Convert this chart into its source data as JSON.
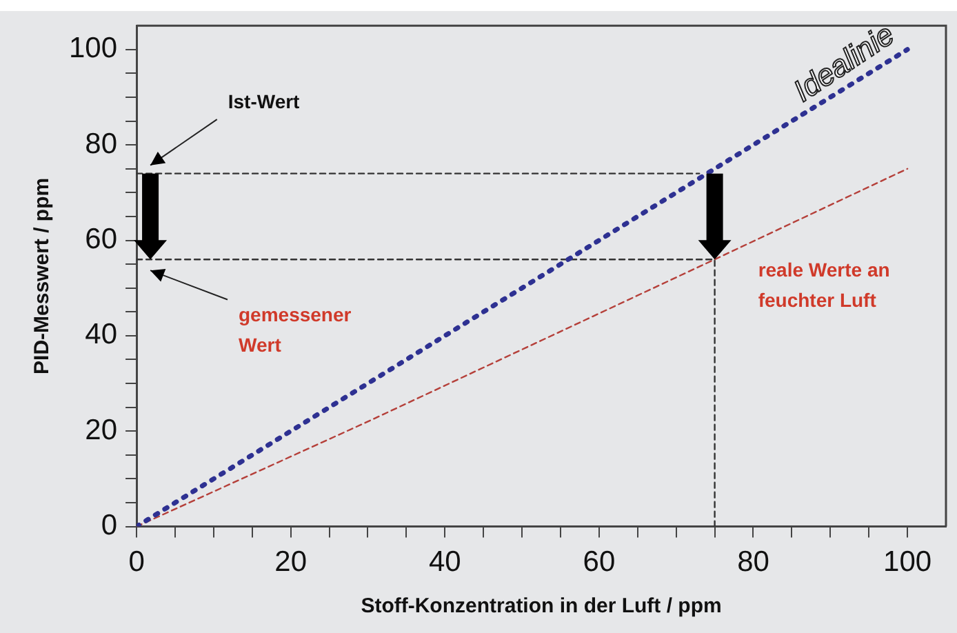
{
  "chart_data": {
    "type": "line",
    "xlabel": "Stoff-Konzentration in der Luft / ppm",
    "ylabel": "PID-Messwert / ppm",
    "xlim": [
      0,
      105
    ],
    "ylim": [
      0,
      105
    ],
    "xticks": [
      0,
      {
        "value": 5,
        "label": null
      },
      {
        "value": 10,
        "label": null
      },
      {
        "value": 15,
        "label": null
      },
      20,
      {
        "value": 25,
        "label": null
      },
      {
        "value": 30,
        "label": null
      },
      {
        "value": 35,
        "label": null
      },
      40,
      {
        "value": 45,
        "label": null
      },
      {
        "value": 50,
        "label": null
      },
      {
        "value": 55,
        "label": null
      },
      60,
      {
        "value": 65,
        "label": null
      },
      {
        "value": 70,
        "label": null
      },
      {
        "value": 75,
        "label": null
      },
      80,
      {
        "value": 85,
        "label": null
      },
      {
        "value": 90,
        "label": null
      },
      {
        "value": 95,
        "label": null
      },
      100
    ],
    "yticks": [
      0,
      {
        "value": 5,
        "label": null
      },
      {
        "value": 10,
        "label": null
      },
      {
        "value": 15,
        "label": null
      },
      20,
      {
        "value": 25,
        "label": null
      },
      {
        "value": 30,
        "label": null
      },
      {
        "value": 35,
        "label": null
      },
      40,
      {
        "value": 45,
        "label": null
      },
      {
        "value": 50,
        "label": null
      },
      {
        "value": 55,
        "label": null
      },
      60,
      {
        "value": 65,
        "label": null
      },
      {
        "value": 70,
        "label": null
      },
      {
        "value": 75,
        "label": null
      },
      80,
      {
        "value": 85,
        "label": null
      },
      {
        "value": 90,
        "label": null
      },
      {
        "value": 95,
        "label": null
      },
      100
    ],
    "series": [
      {
        "color": "#2e3192",
        "x": [
          0,
          100
        ],
        "values": [
          0,
          100
        ],
        "line_style": "dotted"
      },
      {
        "color": "#b5403a",
        "x": [
          0,
          30,
          75,
          100
        ],
        "values": [
          0,
          22,
          56,
          75
        ],
        "line_style": "dashed"
      },
      {
        "color": "#333333",
        "x": [
          0,
          73
        ],
        "values": [
          74,
          74
        ],
        "line_style": "dashed"
      },
      {
        "color": "#333333",
        "x": [
          0,
          75,
          75
        ],
        "values": [
          56,
          56,
          0
        ],
        "line_style": "dashed"
      }
    ],
    "annotations": [
      {
        "text": "Idealinie",
        "x": 84,
        "y": 84
      },
      "Ist-Wert",
      "gemessener Wert",
      "reale Werte an feuchter Luft"
    ],
    "grid": false,
    "legend": false,
    "marker": "none"
  }
}
